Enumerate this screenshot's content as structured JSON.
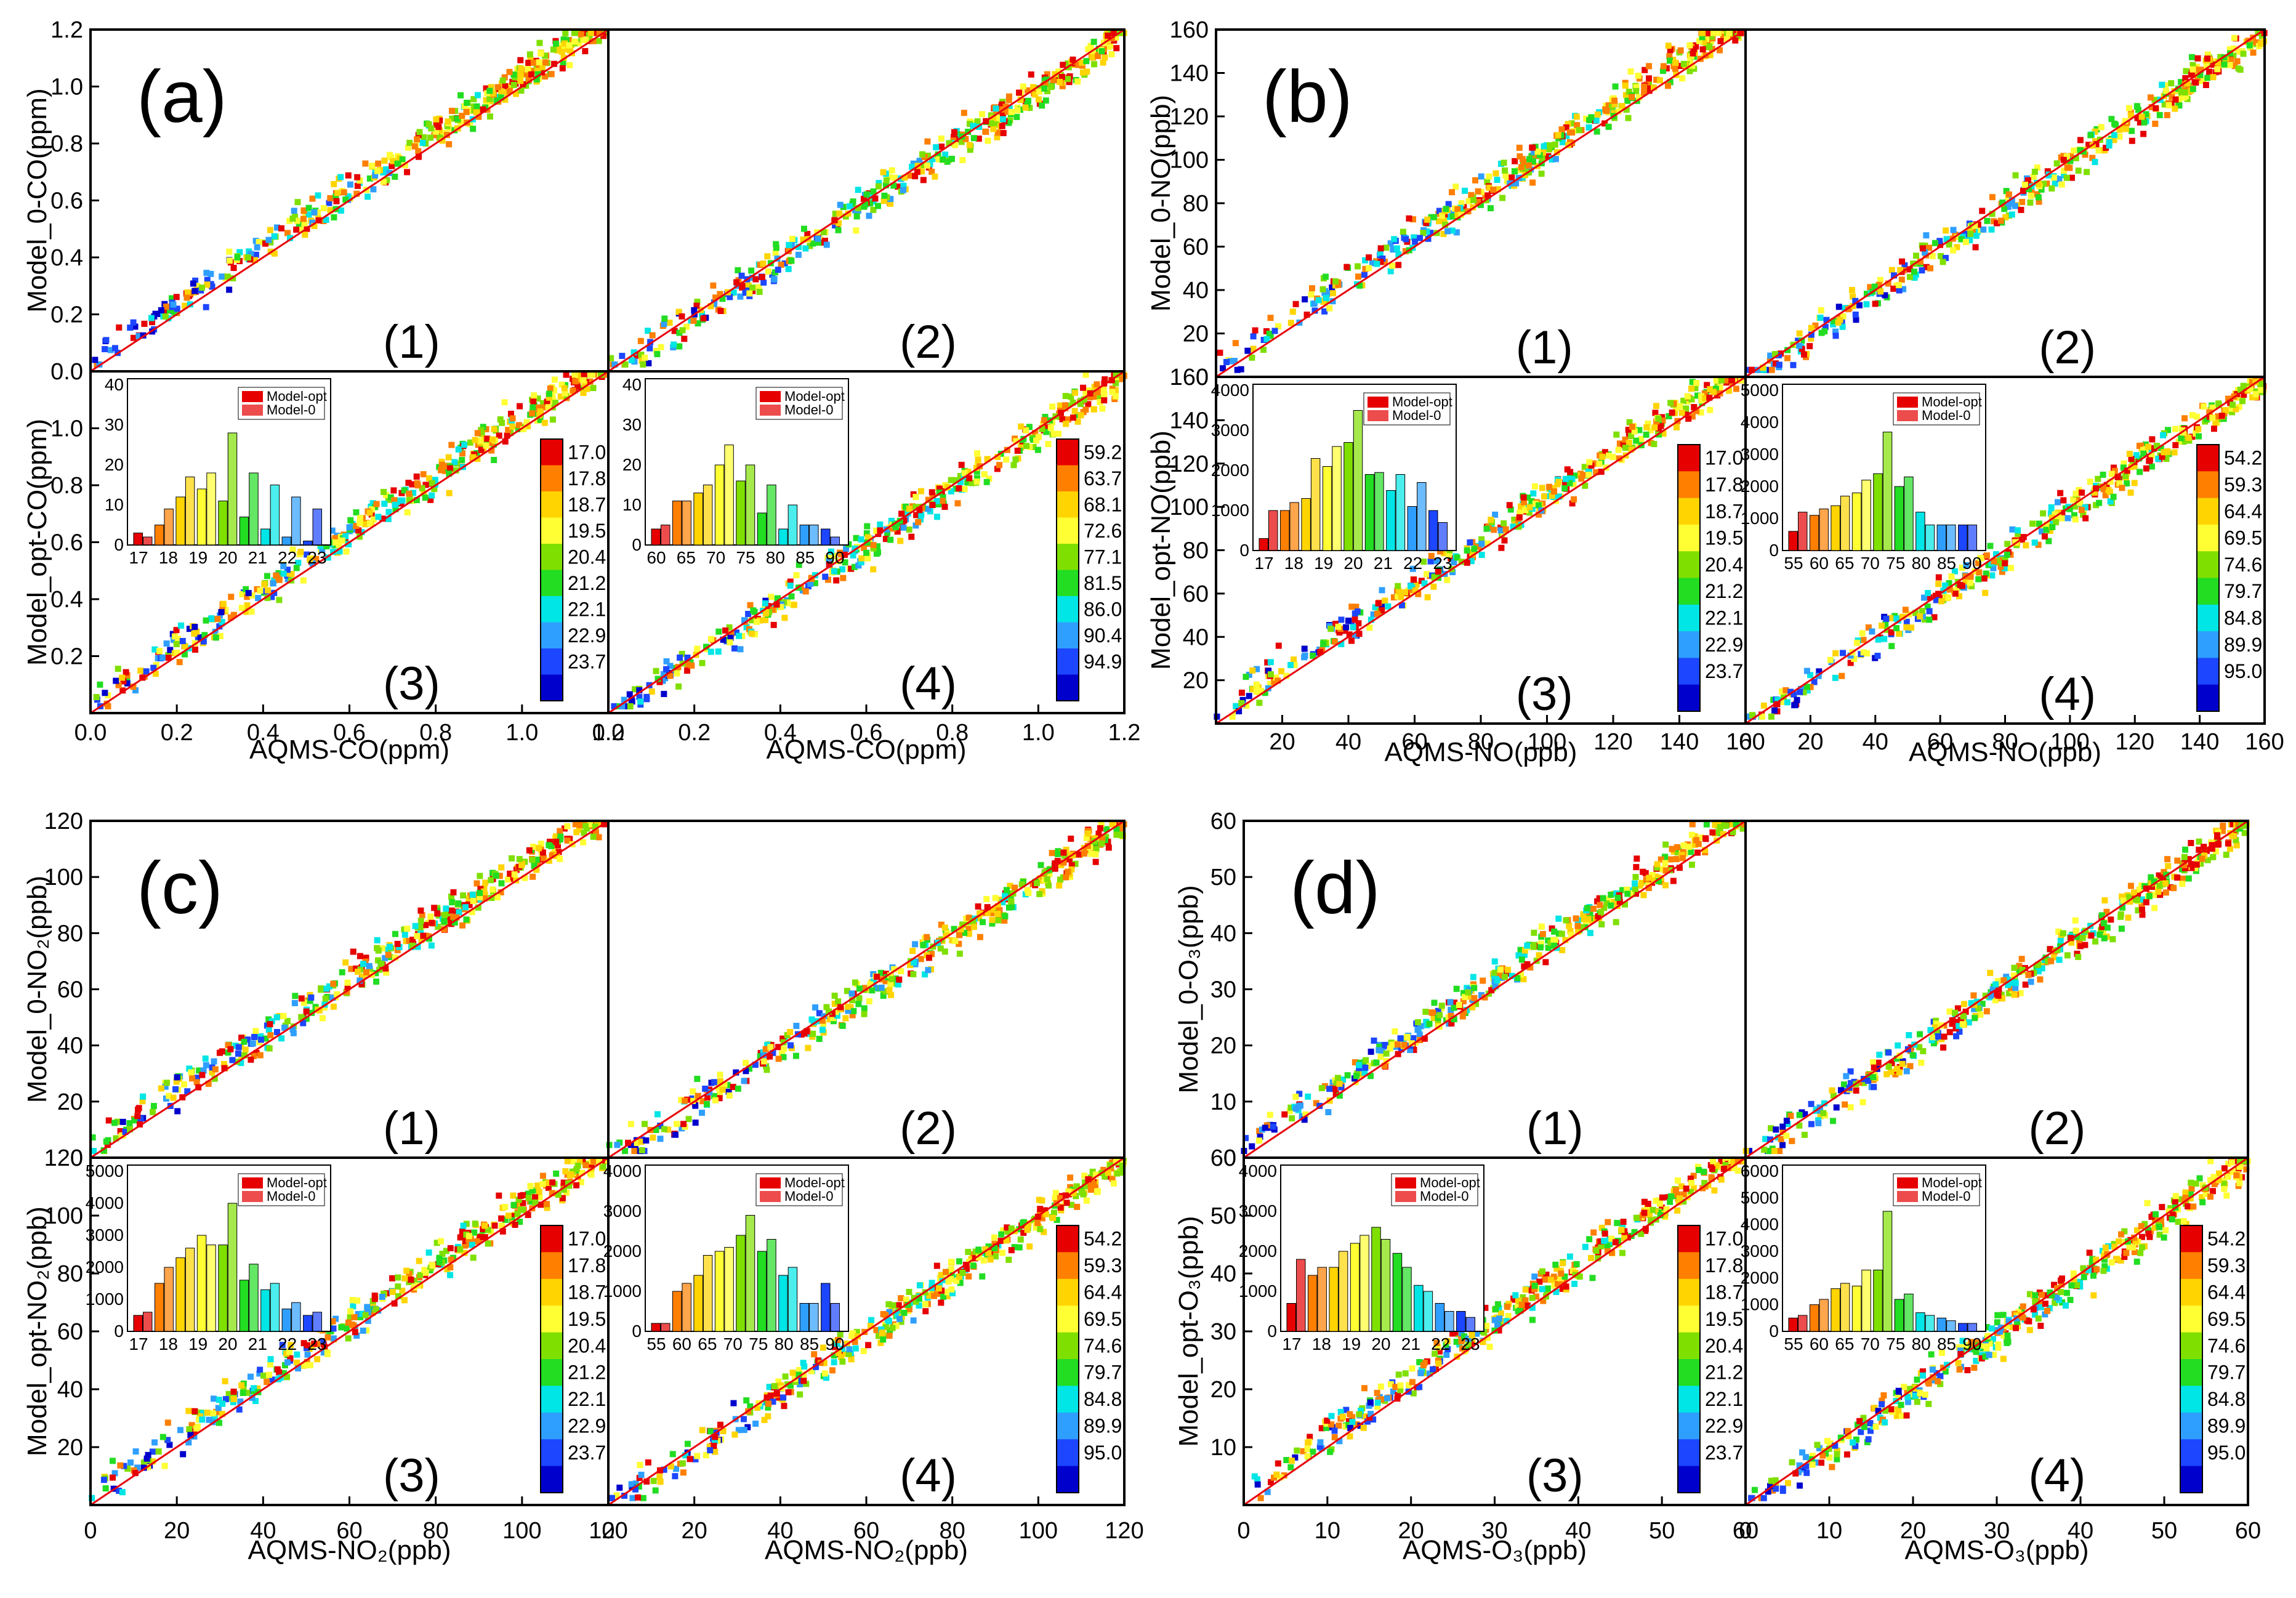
{
  "figure": {
    "description_colors": {
      "ref_line": "#e8000b",
      "frame": "#000000"
    },
    "colormap": [
      "#e60000",
      "#ff7f00",
      "#ffd400",
      "#ffff33",
      "#7fe000",
      "#22dd22",
      "#00e5e5",
      "#2f9fff",
      "#1c46ff",
      "#0000cd"
    ]
  },
  "chart_data": [
    {
      "id": "a",
      "type": "scatter",
      "label": "(a)",
      "subplots": [
        "(1)",
        "(2)",
        "(3)",
        "(4)"
      ],
      "ylabel_top": "Model_0-CO(ppm)",
      "ylabel_bottom": "Model_opt-CO(ppm)",
      "xlabel_left": "AQMS-CO(ppm)",
      "xlabel_right": "AQMS-CO(ppm)",
      "axis_range": [
        0,
        1.2
      ],
      "top_y_ticks": [
        "0.0",
        "0.2",
        "0.4",
        "0.6",
        "0.8",
        "1.0",
        "1.2"
      ],
      "bottom_y_ticks": [
        "0.2",
        "0.4",
        "0.6",
        "0.8",
        "1.0"
      ],
      "x_ticks_left": [
        "0.0",
        "0.2",
        "0.4",
        "0.6",
        "0.8",
        "1.0",
        "1.2"
      ],
      "x_ticks_right": [
        "0.0",
        "0.2",
        "0.4",
        "0.6",
        "0.8",
        "1.0",
        "1.2"
      ],
      "x_tick_values": [
        0,
        0.2,
        0.4,
        0.6,
        0.8,
        1.0,
        1.2
      ],
      "y_tick_values_top": [
        0,
        0.2,
        0.4,
        0.6,
        0.8,
        1.0,
        1.2
      ],
      "y_tick_values_bottom": [
        0.2,
        0.4,
        0.6,
        0.8,
        1.0
      ],
      "colorbar_left": [
        "17.0",
        "17.8",
        "18.7",
        "19.5",
        "20.4",
        "21.2",
        "22.1",
        "22.9",
        "23.7"
      ],
      "colorbar_right": [
        "59.2",
        "63.7",
        "68.1",
        "72.6",
        "77.1",
        "81.5",
        "86.0",
        "90.4",
        "94.9"
      ],
      "inset_left": {
        "legend": [
          "Model-opt",
          "Model-0"
        ],
        "y_ticks": [
          "0",
          "10",
          "20",
          "30",
          "40"
        ],
        "y_max": 40,
        "x_ticks": [
          "17",
          "18",
          "19",
          "20",
          "21",
          "22",
          "23"
        ],
        "opt": [
          3,
          5,
          12,
          14,
          11,
          7,
          4,
          2,
          1
        ],
        "zero": [
          2,
          9,
          17,
          18,
          28,
          18,
          15,
          12,
          9
        ]
      },
      "inset_right": {
        "legend": [
          "Model-opt",
          "Model-0"
        ],
        "y_ticks": [
          "0",
          "10",
          "20",
          "30",
          "40"
        ],
        "y_max": 40,
        "x_ticks": [
          "60",
          "65",
          "70",
          "75",
          "80",
          "85",
          "90"
        ],
        "opt": [
          4,
          11,
          13,
          20,
          16,
          8,
          4,
          5,
          4
        ],
        "zero": [
          5,
          11,
          15,
          25,
          20,
          15,
          10,
          5,
          2
        ]
      }
    },
    {
      "id": "b",
      "type": "scatter",
      "label": "(b)",
      "subplots": [
        "(1)",
        "(2)",
        "(3)",
        "(4)"
      ],
      "ylabel_top": "Model_0-NO(ppb)",
      "ylabel_bottom": "Model_opt-NO(ppb)",
      "xlabel_left": "AQMS-NO(ppb)",
      "xlabel_right": "AQMS-NO(ppb)",
      "axis_range": [
        0,
        160
      ],
      "top_y_ticks": [
        "0",
        "20",
        "40",
        "60",
        "80",
        "100",
        "120",
        "140",
        "160"
      ],
      "bottom_y_ticks": [
        "20",
        "40",
        "60",
        "80",
        "100",
        "120",
        "140",
        "160"
      ],
      "x_ticks_left": [
        "20",
        "40",
        "60",
        "80",
        "100",
        "120",
        "140",
        "160"
      ],
      "x_ticks_right": [
        "0",
        "20",
        "40",
        "60",
        "80",
        "100",
        "120",
        "140",
        "160"
      ],
      "x_tick_values": [
        0,
        20,
        40,
        60,
        80,
        100,
        120,
        140,
        160
      ],
      "y_tick_values_top": [
        0,
        20,
        40,
        60,
        80,
        100,
        120,
        140,
        160
      ],
      "y_tick_values_bottom": [
        20,
        40,
        60,
        80,
        100,
        120,
        140,
        160
      ],
      "colorbar_left": [
        "17.0",
        "17.8",
        "18.7",
        "19.5",
        "20.4",
        "21.2",
        "22.1",
        "22.9",
        "23.7"
      ],
      "colorbar_right": [
        "54.2",
        "59.3",
        "64.4",
        "69.5",
        "74.6",
        "79.7",
        "84.8",
        "89.9",
        "95.0"
      ],
      "inset_left": {
        "legend": [
          "Model-opt",
          "Model-0"
        ],
        "y_ticks": [
          "0",
          "1000",
          "2000",
          "3000",
          "4000"
        ],
        "y_max": 4000,
        "x_ticks": [
          "17",
          "18",
          "19",
          "20",
          "21",
          "22",
          "23"
        ],
        "opt": [
          300,
          1000,
          1300,
          2100,
          2700,
          1900,
          1500,
          1100,
          1000
        ],
        "zero": [
          1000,
          1200,
          2300,
          2600,
          3500,
          1950,
          1900,
          1700,
          700
        ]
      },
      "inset_right": {
        "legend": [
          "Model-opt",
          "Model-0"
        ],
        "y_ticks": [
          "0",
          "1000",
          "2000",
          "3000",
          "4000",
          "5000"
        ],
        "y_max": 5000,
        "x_ticks": [
          "55",
          "60",
          "65",
          "70",
          "75",
          "80",
          "85",
          "90"
        ],
        "opt": [
          600,
          1100,
          1400,
          1800,
          2400,
          2000,
          1200,
          800,
          800
        ],
        "zero": [
          1200,
          1300,
          1700,
          2200,
          3700,
          2300,
          800,
          800,
          800
        ]
      }
    },
    {
      "id": "c",
      "type": "scatter",
      "label": "(c)",
      "subplots": [
        "(1)",
        "(2)",
        "(3)",
        "(4)"
      ],
      "ylabel_top": "Model_0-NO₂(ppb)",
      "ylabel_bottom": "Model_opt-NO₂(ppb)",
      "xlabel_left": "AQMS-NO₂(ppb)",
      "xlabel_right": "AQMS-NO₂(ppb)",
      "axis_range": [
        0,
        120
      ],
      "top_y_ticks": [
        "0",
        "20",
        "40",
        "60",
        "80",
        "100",
        "120"
      ],
      "bottom_y_ticks": [
        "20",
        "40",
        "60",
        "80",
        "100",
        "120"
      ],
      "x_ticks_left": [
        "0",
        "20",
        "40",
        "60",
        "80",
        "100",
        "120"
      ],
      "x_ticks_right": [
        "0",
        "20",
        "40",
        "60",
        "80",
        "100",
        "120"
      ],
      "x_tick_values": [
        0,
        20,
        40,
        60,
        80,
        100,
        120
      ],
      "y_tick_values_top": [
        0,
        20,
        40,
        60,
        80,
        100,
        120
      ],
      "y_tick_values_bottom": [
        20,
        40,
        60,
        80,
        100,
        120
      ],
      "colorbar_left": [
        "17.0",
        "17.8",
        "18.7",
        "19.5",
        "20.4",
        "21.2",
        "22.1",
        "22.9",
        "23.7"
      ],
      "colorbar_right": [
        "54.2",
        "59.3",
        "64.4",
        "69.5",
        "74.6",
        "79.7",
        "84.8",
        "89.9",
        "95.0"
      ],
      "inset_left": {
        "legend": [
          "Model-opt",
          "Model-0"
        ],
        "y_ticks": [
          "0",
          "1000",
          "2000",
          "3000",
          "4000",
          "5000"
        ],
        "y_max": 5000,
        "x_ticks": [
          "17",
          "18",
          "19",
          "20",
          "21",
          "22",
          "23"
        ],
        "opt": [
          500,
          1500,
          2300,
          3000,
          2700,
          1600,
          1300,
          700,
          500
        ],
        "zero": [
          600,
          2000,
          2600,
          2700,
          4000,
          2100,
          1500,
          900,
          600
        ]
      },
      "inset_right": {
        "legend": [
          "Model-opt",
          "Model-0"
        ],
        "y_ticks": [
          "0",
          "1000",
          "2000",
          "3000",
          "4000"
        ],
        "y_max": 4000,
        "x_ticks": [
          "55",
          "60",
          "65",
          "70",
          "75",
          "80",
          "85",
          "90"
        ],
        "opt": [
          200,
          1000,
          1400,
          2000,
          2400,
          2000,
          1400,
          700,
          1200
        ],
        "zero": [
          200,
          1200,
          1900,
          2100,
          2900,
          2300,
          1600,
          700,
          700
        ]
      }
    },
    {
      "id": "d",
      "type": "scatter",
      "label": "(d)",
      "subplots": [
        "(1)",
        "(2)",
        "(3)",
        "(4)"
      ],
      "ylabel_top": "Model_0-O₃(ppb)",
      "ylabel_bottom": "Model_opt-O₃(ppb)",
      "xlabel_left": "AQMS-O₃(ppb)",
      "xlabel_right": "AQMS-O₃(ppb)",
      "axis_range": [
        0,
        60
      ],
      "top_y_ticks": [
        "0",
        "10",
        "20",
        "30",
        "40",
        "50",
        "60"
      ],
      "bottom_y_ticks": [
        "10",
        "20",
        "30",
        "40",
        "50",
        "60"
      ],
      "x_ticks_left": [
        "0",
        "10",
        "20",
        "30",
        "40",
        "50",
        "60"
      ],
      "x_ticks_right": [
        "0",
        "10",
        "20",
        "30",
        "40",
        "50",
        "60"
      ],
      "x_tick_values": [
        0,
        10,
        20,
        30,
        40,
        50,
        60
      ],
      "y_tick_values_top": [
        0,
        10,
        20,
        30,
        40,
        50,
        60
      ],
      "y_tick_values_bottom": [
        10,
        20,
        30,
        40,
        50,
        60
      ],
      "colorbar_left": [
        "17.0",
        "17.8",
        "18.7",
        "19.5",
        "20.4",
        "21.2",
        "22.1",
        "22.9",
        "23.7"
      ],
      "colorbar_right": [
        "54.2",
        "59.3",
        "64.4",
        "69.5",
        "74.6",
        "79.7",
        "84.8",
        "89.9",
        "95.0"
      ],
      "inset_left": {
        "legend": [
          "Model-opt",
          "Model-0"
        ],
        "y_ticks": [
          "0",
          "1000",
          "2000",
          "3000",
          "4000"
        ],
        "y_max": 4000,
        "x_ticks": [
          "17",
          "18",
          "19",
          "20",
          "21",
          "22",
          "23"
        ],
        "opt": [
          700,
          1400,
          1600,
          2200,
          2600,
          1950,
          1150,
          700,
          500
        ],
        "zero": [
          1800,
          1600,
          2000,
          2400,
          2300,
          1600,
          1000,
          500,
          350
        ]
      },
      "inset_right": {
        "legend": [
          "Model-opt",
          "Model-0"
        ],
        "y_ticks": [
          "0",
          "1000",
          "2000",
          "3000",
          "4000",
          "5000",
          "6000"
        ],
        "y_max": 6000,
        "x_ticks": [
          "55",
          "60",
          "65",
          "70",
          "75",
          "80",
          "85",
          "90"
        ],
        "opt": [
          500,
          1000,
          1600,
          1700,
          2300,
          1200,
          700,
          500,
          300
        ],
        "zero": [
          600,
          1200,
          1800,
          2300,
          4500,
          1400,
          600,
          400,
          300
        ]
      }
    }
  ]
}
